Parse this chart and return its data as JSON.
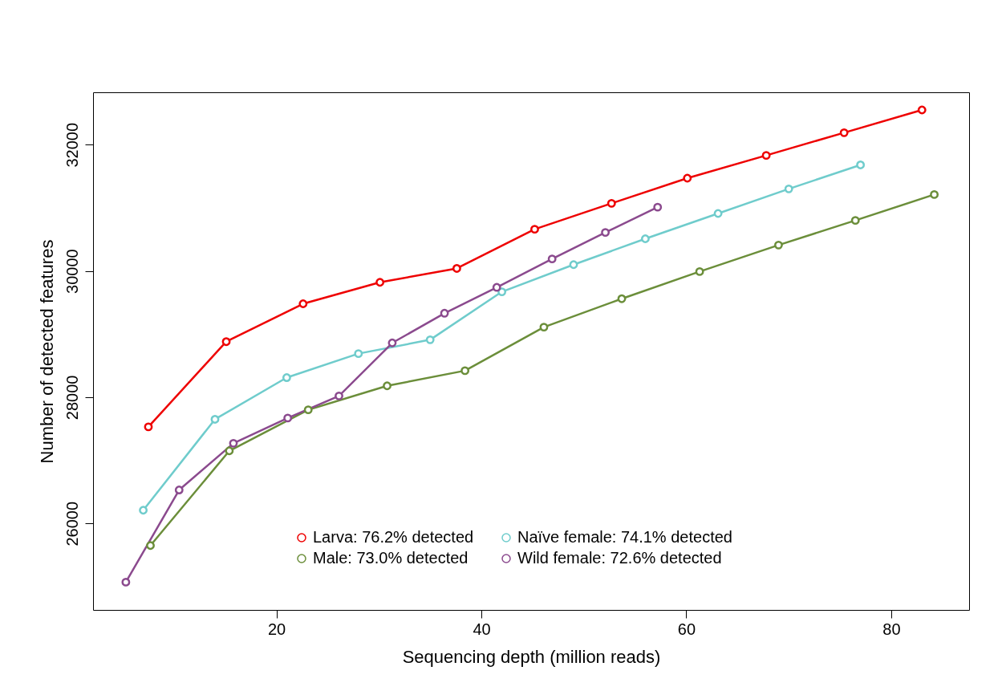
{
  "chart_data": {
    "type": "line",
    "xlabel": "Sequencing depth (million reads)",
    "ylabel": "Number of detected features",
    "xlim": [
      2.1,
      87.6
    ],
    "xticks": [
      20,
      40,
      60,
      80
    ],
    "ylim": [
      24630,
      32830
    ],
    "yticks": [
      26000,
      28000,
      30000,
      32000
    ],
    "grid": false,
    "legend": "bottom",
    "marker": "circle",
    "line_style": "solid",
    "series": [
      {
        "name": "Larva: 76.2% detected",
        "color": "#ee0000",
        "x": [
          7.5,
          15.1,
          22.6,
          30.1,
          37.6,
          45.2,
          52.7,
          60.1,
          67.8,
          75.4,
          83.0
        ],
        "values": [
          27530,
          28880,
          29480,
          29820,
          30040,
          30660,
          31070,
          31470,
          31830,
          32190,
          32550
        ]
      },
      {
        "name": "Male: 73.0% detected",
        "color": "#6b8e3a",
        "x": [
          7.7,
          15.4,
          23.1,
          30.8,
          38.4,
          46.1,
          53.7,
          61.3,
          69.0,
          76.5,
          84.2
        ],
        "values": [
          25650,
          27150,
          27800,
          28180,
          28420,
          29110,
          29560,
          29990,
          30410,
          30800,
          31210
        ]
      },
      {
        "name": "Naïve female: 74.1% detected",
        "color": "#6fcccc",
        "x": [
          7.0,
          14.0,
          21.0,
          28.0,
          35.0,
          42.0,
          49.0,
          56.0,
          63.1,
          70.0,
          77.0
        ],
        "values": [
          26210,
          27650,
          28310,
          28690,
          28910,
          29670,
          30100,
          30510,
          30910,
          31300,
          31680
        ]
      },
      {
        "name": "Wild female: 72.6% detected",
        "color": "#8b4a8e",
        "x": [
          5.3,
          10.5,
          15.8,
          21.1,
          26.1,
          31.3,
          36.4,
          41.5,
          46.9,
          52.1,
          57.2
        ],
        "values": [
          25070,
          26530,
          27270,
          27670,
          28020,
          28860,
          29330,
          29740,
          30190,
          30610,
          31010
        ]
      }
    ]
  }
}
